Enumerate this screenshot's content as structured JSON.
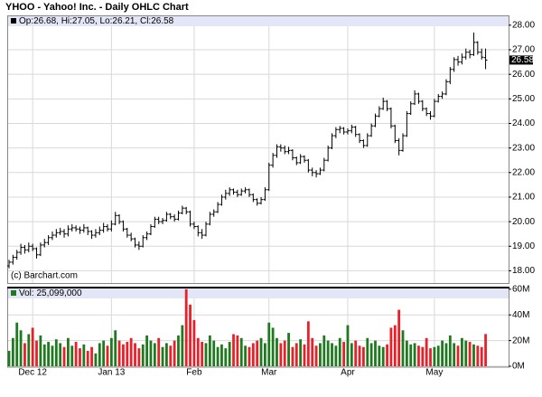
{
  "chart_data": {
    "type": "ohlc",
    "title": "YHOO - Yahoo! Inc. - Daily OHLC Chart",
    "legend": "Op:26.68, Hi:27.05, Lo:26.21, Cl:26.58",
    "source": "(c) Barchart.com",
    "color": "#000000",
    "grid": true,
    "categories": [
      null,
      null,
      null,
      null,
      null,
      null,
      "Dec 12",
      null,
      null,
      null,
      null,
      null,
      null,
      null,
      null,
      null,
      null,
      null,
      null,
      null,
      null,
      null,
      null,
      null,
      null,
      null,
      "Jan 13",
      null,
      null,
      null,
      null,
      null,
      null,
      null,
      null,
      null,
      null,
      null,
      null,
      null,
      null,
      null,
      null,
      null,
      null,
      null,
      null,
      "Feb",
      null,
      null,
      null,
      null,
      null,
      null,
      null,
      null,
      null,
      null,
      null,
      null,
      null,
      null,
      null,
      null,
      null,
      null,
      "Mar",
      null,
      null,
      null,
      null,
      null,
      null,
      null,
      null,
      null,
      null,
      null,
      null,
      null,
      null,
      null,
      null,
      null,
      null,
      null,
      "Apr",
      null,
      null,
      null,
      null,
      null,
      null,
      null,
      null,
      null,
      null,
      null,
      null,
      null,
      null,
      null,
      null,
      null,
      null,
      null,
      null,
      null,
      "May",
      null,
      null,
      null,
      null,
      null,
      null,
      null,
      null,
      null,
      null,
      null,
      null,
      null
    ],
    "open": [
      18.2,
      18.35,
      18.55,
      18.75,
      18.95,
      18.85,
      19.0,
      18.9,
      18.65,
      19.05,
      19.15,
      19.35,
      19.45,
      19.55,
      19.6,
      19.5,
      19.7,
      19.75,
      19.7,
      19.65,
      19.75,
      19.6,
      19.45,
      19.55,
      19.65,
      19.8,
      19.7,
      19.9,
      20.25,
      20.0,
      19.7,
      19.45,
      19.3,
      19.05,
      19.0,
      19.35,
      19.5,
      19.8,
      20.1,
      20.0,
      20.05,
      20.3,
      20.2,
      20.1,
      20.35,
      20.55,
      20.4,
      19.9,
      19.8,
      19.55,
      19.45,
      19.9,
      20.3,
      20.4,
      20.7,
      21.0,
      21.15,
      21.3,
      21.2,
      21.1,
      21.25,
      21.3,
      21.1,
      20.9,
      20.75,
      20.9,
      21.3,
      22.3,
      22.7,
      23.05,
      23.0,
      22.85,
      22.9,
      22.6,
      22.4,
      22.65,
      22.5,
      22.1,
      22.0,
      21.95,
      22.1,
      22.5,
      23.0,
      23.5,
      23.75,
      23.8,
      23.65,
      23.7,
      23.85,
      23.55,
      23.3,
      23.1,
      23.5,
      23.9,
      24.3,
      24.6,
      24.9,
      24.6,
      23.9,
      23.3,
      22.9,
      23.5,
      24.4,
      24.8,
      25.2,
      24.9,
      24.6,
      24.4,
      24.3,
      24.9,
      25.1,
      25.2,
      25.7,
      26.2,
      26.6,
      26.5,
      26.7,
      26.9,
      26.8,
      27.3,
      26.9,
      26.68
    ],
    "high": [
      18.45,
      18.65,
      18.85,
      19.1,
      19.05,
      19.15,
      19.1,
      18.95,
      19.15,
      19.3,
      19.45,
      19.6,
      19.7,
      19.75,
      19.7,
      19.85,
      19.9,
      19.85,
      19.8,
      19.9,
      19.8,
      19.65,
      19.7,
      19.8,
      19.95,
      19.9,
      20.05,
      20.4,
      20.3,
      20.05,
      19.75,
      19.55,
      19.35,
      19.2,
      19.45,
      19.6,
      19.9,
      20.2,
      20.2,
      20.15,
      20.4,
      20.35,
      20.3,
      20.45,
      20.65,
      20.6,
      20.45,
      20.0,
      19.85,
      19.7,
      20.0,
      20.4,
      20.5,
      20.8,
      21.1,
      21.3,
      21.4,
      21.35,
      21.3,
      21.35,
      21.4,
      21.35,
      21.15,
      20.95,
      21.0,
      21.4,
      22.4,
      22.8,
      23.15,
      23.15,
      23.1,
      23.05,
      22.95,
      22.65,
      22.75,
      22.7,
      22.55,
      22.2,
      22.1,
      22.2,
      22.6,
      23.1,
      23.6,
      23.85,
      23.9,
      23.85,
      23.8,
      23.95,
      23.9,
      23.6,
      23.35,
      23.6,
      24.0,
      24.4,
      24.7,
      25.05,
      24.95,
      24.65,
      23.95,
      23.4,
      23.6,
      24.5,
      24.9,
      25.35,
      25.25,
      24.95,
      24.65,
      24.5,
      25.0,
      25.2,
      25.3,
      25.8,
      26.3,
      26.7,
      26.75,
      26.85,
      27.05,
      27.0,
      27.7,
      27.35,
      27.05,
      27.05
    ],
    "low": [
      18.1,
      18.25,
      18.45,
      18.65,
      18.7,
      18.75,
      18.8,
      18.5,
      18.6,
      18.95,
      19.05,
      19.25,
      19.35,
      19.45,
      19.35,
      19.4,
      19.6,
      19.6,
      19.5,
      19.55,
      19.45,
      19.3,
      19.35,
      19.45,
      19.55,
      19.6,
      19.6,
      19.85,
      19.9,
      19.6,
      19.35,
      19.2,
      18.95,
      18.85,
      18.95,
      19.25,
      19.45,
      19.75,
      19.9,
      19.9,
      20.0,
      20.1,
      20.0,
      20.05,
      20.3,
      20.3,
      19.8,
      19.7,
      19.4,
      19.3,
      19.4,
      19.85,
      20.2,
      20.35,
      20.65,
      20.9,
      21.05,
      21.1,
      21.0,
      21.05,
      21.15,
      21.0,
      20.8,
      20.65,
      20.7,
      20.85,
      21.25,
      22.2,
      22.6,
      22.85,
      22.75,
      22.75,
      22.5,
      22.3,
      22.35,
      22.4,
      22.0,
      21.85,
      21.8,
      21.9,
      22.05,
      22.45,
      22.95,
      23.4,
      23.6,
      23.55,
      23.55,
      23.6,
      23.45,
      23.2,
      23.0,
      23.05,
      23.45,
      23.85,
      24.25,
      24.55,
      24.5,
      23.8,
      23.2,
      22.7,
      22.85,
      23.45,
      24.35,
      24.75,
      24.8,
      24.5,
      24.3,
      24.15,
      24.25,
      24.85,
      25.0,
      25.15,
      25.6,
      26.1,
      26.35,
      26.4,
      26.6,
      26.65,
      26.75,
      26.8,
      26.6,
      26.21
    ],
    "close": [
      18.35,
      18.55,
      18.75,
      18.95,
      18.85,
      19.0,
      18.9,
      18.65,
      19.05,
      19.15,
      19.35,
      19.45,
      19.55,
      19.6,
      19.5,
      19.7,
      19.75,
      19.7,
      19.65,
      19.75,
      19.6,
      19.45,
      19.55,
      19.65,
      19.8,
      19.7,
      19.9,
      20.25,
      20.0,
      19.7,
      19.45,
      19.3,
      19.05,
      19.0,
      19.35,
      19.5,
      19.8,
      20.1,
      20.0,
      20.05,
      20.3,
      20.2,
      20.1,
      20.35,
      20.55,
      20.4,
      19.9,
      19.8,
      19.55,
      19.45,
      19.9,
      20.3,
      20.4,
      20.7,
      21.0,
      21.15,
      21.3,
      21.2,
      21.1,
      21.25,
      21.3,
      21.1,
      20.9,
      20.75,
      20.9,
      21.3,
      22.3,
      22.7,
      23.05,
      23.0,
      22.85,
      22.9,
      22.6,
      22.4,
      22.65,
      22.5,
      22.1,
      22.0,
      21.95,
      22.1,
      22.5,
      23.0,
      23.5,
      23.75,
      23.8,
      23.65,
      23.7,
      23.85,
      23.55,
      23.3,
      23.1,
      23.5,
      23.9,
      24.3,
      24.6,
      24.9,
      24.6,
      23.9,
      23.3,
      22.9,
      23.5,
      24.4,
      24.8,
      25.2,
      24.9,
      24.6,
      24.4,
      24.3,
      24.9,
      25.1,
      25.2,
      25.7,
      26.2,
      26.6,
      26.5,
      26.7,
      26.9,
      26.8,
      27.3,
      26.9,
      26.7,
      26.58
    ],
    "ylim": [
      17.5,
      28.4
    ],
    "yticks": [
      {
        "value": 18,
        "label": "18.00"
      },
      {
        "value": 19,
        "label": "19.00"
      },
      {
        "value": 20,
        "label": "20.00"
      },
      {
        "value": 21,
        "label": "21.00"
      },
      {
        "value": 22,
        "label": "22.00"
      },
      {
        "value": 23,
        "label": "23.00"
      },
      {
        "value": 24,
        "label": "24.00"
      },
      {
        "value": 25,
        "label": "25.00"
      },
      {
        "value": 26,
        "label": "26.00"
      },
      {
        "value": 27,
        "label": "27.00"
      },
      {
        "value": 28,
        "label": "28.00"
      }
    ],
    "volume": {
      "type": "bar",
      "legend": "Vol: 25,099,000",
      "up_color": "#1f7a1f",
      "down_color": "#e8202a",
      "values": [
        12000000,
        22000000,
        34000000,
        28000000,
        18000000,
        25000000,
        30000000,
        20000000,
        24000000,
        17000000,
        19000000,
        16000000,
        21000000,
        18000000,
        15000000,
        22000000,
        16000000,
        19000000,
        14000000,
        17000000,
        12000000,
        15000000,
        10000000,
        18000000,
        20000000,
        16000000,
        22000000,
        28000000,
        20000000,
        17000000,
        19000000,
        22000000,
        18000000,
        14000000,
        17000000,
        24000000,
        20000000,
        18000000,
        22000000,
        15000000,
        18000000,
        16000000,
        20000000,
        24000000,
        32000000,
        60000000,
        48000000,
        36000000,
        22000000,
        19000000,
        18000000,
        24000000,
        20000000,
        15000000,
        17000000,
        14000000,
        19000000,
        25000000,
        24000000,
        22000000,
        16000000,
        15000000,
        18000000,
        20000000,
        22000000,
        18000000,
        34000000,
        30000000,
        22000000,
        18000000,
        20000000,
        26000000,
        15000000,
        18000000,
        21000000,
        17000000,
        35000000,
        22000000,
        16000000,
        18000000,
        24000000,
        20000000,
        18000000,
        16000000,
        22000000,
        19000000,
        32000000,
        18000000,
        20000000,
        16000000,
        15000000,
        22000000,
        18000000,
        20000000,
        16000000,
        15000000,
        17000000,
        30000000,
        32000000,
        44000000,
        28000000,
        20000000,
        17000000,
        18000000,
        16000000,
        15000000,
        22000000,
        14000000,
        15000000,
        16000000,
        20000000,
        18000000,
        24000000,
        18000000,
        16000000,
        22000000,
        20000000,
        19000000,
        17000000,
        16000000,
        15000000,
        25099000
      ],
      "ylim": [
        0,
        62000000
      ],
      "yticks": [
        {
          "value": 0,
          "label": "0M"
        },
        {
          "value": 20000000,
          "label": "20M"
        },
        {
          "value": 40000000,
          "label": "40M"
        },
        {
          "value": 60000000,
          "label": "60M"
        }
      ]
    }
  }
}
